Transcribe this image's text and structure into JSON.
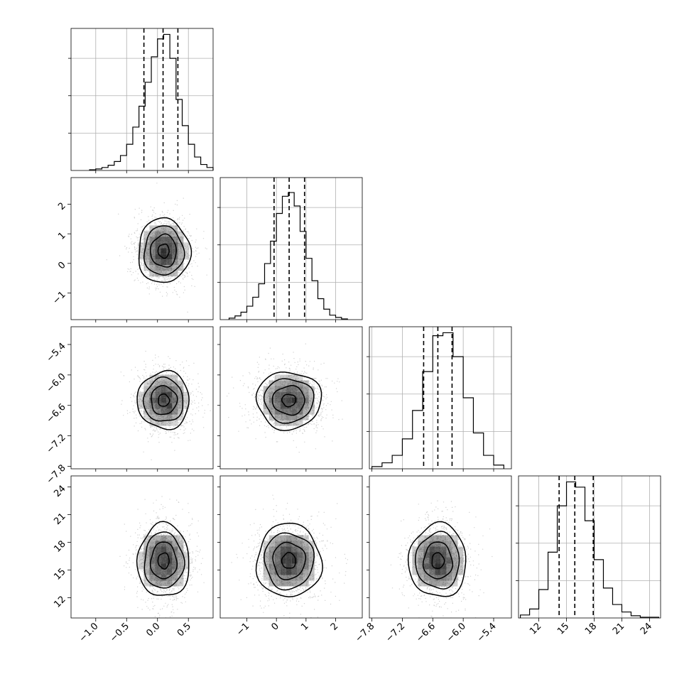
{
  "chart_data": {
    "type": "corner",
    "title": "",
    "parameters": [
      {
        "index": 0,
        "range": [
          -1.4,
          0.9
        ],
        "ticks": [
          -1.0,
          -0.5,
          0.0,
          0.5
        ],
        "tick_labels": [
          "−1.0",
          "−0.5",
          "0.0",
          "0.5"
        ],
        "mean": 0.1,
        "sd": 0.2,
        "quantiles": [
          -0.22,
          0.09,
          0.33
        ]
      },
      {
        "index": 1,
        "range": [
          -1.9,
          2.9
        ],
        "ticks": [
          -1,
          0,
          1,
          2
        ],
        "tick_labels": [
          "−1",
          "0",
          "1",
          "2"
        ],
        "mean": 0.42,
        "sd": 0.52,
        "quantiles": [
          -0.08,
          0.43,
          0.95
        ]
      },
      {
        "index": 2,
        "range": [
          -7.85,
          -5.05
        ],
        "ticks": [
          -7.8,
          -7.2,
          -6.6,
          -6.0,
          -5.4
        ],
        "tick_labels": [
          "−7.8",
          "−7.2",
          "−6.6",
          "−6.0",
          "−5.4"
        ],
        "mean": -6.5,
        "sd": 0.27,
        "quantiles": [
          -6.78,
          -6.5,
          -6.22
        ]
      },
      {
        "index": 3,
        "range": [
          9.8,
          25.2
        ],
        "ticks": [
          12,
          15,
          18,
          21,
          24
        ],
        "tick_labels": [
          "12",
          "15",
          "18",
          "21",
          "24"
        ],
        "mean": 16,
        "sd": 1.9,
        "quantiles": [
          14.2,
          15.9,
          17.9
        ]
      }
    ],
    "histograms": [
      {
        "param": 0,
        "bin_edges": [
          -1.1,
          -1.0,
          -0.9,
          -0.8,
          -0.7,
          -0.6,
          -0.5,
          -0.4,
          -0.3,
          -0.2,
          -0.1,
          0.0,
          0.1,
          0.2,
          0.3,
          0.4,
          0.5,
          0.6,
          0.7,
          0.8,
          0.9
        ],
        "counts": [
          1,
          2,
          4,
          7,
          12,
          20,
          35,
          58,
          86,
          118,
          152,
          176,
          182,
          150,
          95,
          60,
          35,
          18,
          8,
          4
        ],
        "ylim": [
          0,
          190
        ]
      },
      {
        "param": 1,
        "bin_edges": [
          -1.6,
          -1.4,
          -1.2,
          -1.0,
          -0.8,
          -0.6,
          -0.4,
          -0.2,
          0.0,
          0.2,
          0.4,
          0.6,
          0.8,
          1.0,
          1.2,
          1.4,
          1.6,
          1.8,
          2.0,
          2.2,
          2.4
        ],
        "counts": [
          2,
          5,
          10,
          18,
          30,
          48,
          75,
          105,
          142,
          165,
          170,
          152,
          118,
          82,
          52,
          28,
          14,
          6,
          3,
          1
        ],
        "ylim": [
          0,
          190
        ]
      },
      {
        "param": 2,
        "bin_edges": [
          -7.8,
          -7.6,
          -7.4,
          -7.2,
          -7.0,
          -6.8,
          -6.6,
          -6.4,
          -6.2,
          -6.0,
          -5.8,
          -5.6,
          -5.4,
          -5.2
        ],
        "counts": [
          3,
          8,
          18,
          40,
          78,
          130,
          178,
          182,
          150,
          95,
          48,
          18,
          5
        ],
        "ylim": [
          0,
          190
        ]
      },
      {
        "param": 3,
        "bin_edges": [
          10,
          11,
          12,
          13,
          14,
          15,
          16,
          17,
          18,
          19,
          20,
          21,
          22,
          23,
          24,
          25
        ],
        "counts": [
          4,
          12,
          38,
          88,
          150,
          182,
          175,
          130,
          78,
          40,
          18,
          8,
          3,
          1,
          1
        ],
        "ylim": [
          0,
          190
        ]
      }
    ],
    "pair_plots": [
      {
        "x_param": 0,
        "y_param": 1,
        "contour_levels": 4
      },
      {
        "x_param": 0,
        "y_param": 2,
        "contour_levels": 4
      },
      {
        "x_param": 1,
        "y_param": 2,
        "contour_levels": 4
      },
      {
        "x_param": 0,
        "y_param": 3,
        "contour_levels": 4
      },
      {
        "x_param": 1,
        "y_param": 3,
        "contour_levels": 4
      },
      {
        "x_param": 2,
        "y_param": 3,
        "contour_levels": 4
      }
    ],
    "grid": true,
    "colors": {
      "hist": "#000000",
      "scatter": "#9a9a9a",
      "contour": "#000000",
      "density": "#000000"
    }
  }
}
